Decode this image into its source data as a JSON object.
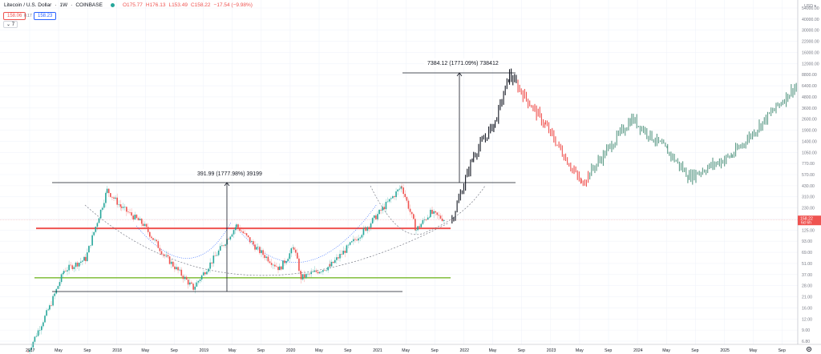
{
  "header": {
    "symbol": "Litecoin / U.S. Dollar",
    "interval": "1W",
    "exchange": "COINBASE",
    "open": "O175.77",
    "high": "H176.13",
    "low": "L153.49",
    "close": "C158.22",
    "change": "−17.54 (−9.98%)",
    "sell_price": "158.06",
    "spread": "0.17",
    "buy_price": "158.23",
    "indicators_toggle": "7"
  },
  "price_axis": {
    "currency": "USD",
    "labels": [
      "54000.00",
      "40000.00",
      "30000.00",
      "22000.00",
      "16000.00",
      "12000.00",
      "8800.00",
      "6400.00",
      "4800.00",
      "3600.00",
      "2600.00",
      "1900.00",
      "1400.00",
      "1050.00",
      "770.00",
      "570.00",
      "430.00",
      "310.00",
      "230.00",
      "170.00",
      "125.00",
      "93.00",
      "69.00",
      "51.00",
      "37.00",
      "28.00",
      "21.00",
      "16.00",
      "12.00",
      "9.00",
      "6.80"
    ],
    "current_price": "158.22",
    "countdown": "6d 6h"
  },
  "time_axis": {
    "labels": [
      "2017",
      "May",
      "Sep",
      "2018",
      "May",
      "Sep",
      "2019",
      "May",
      "Sep",
      "2020",
      "May",
      "Sep",
      "2021",
      "May",
      "Sep",
      "2022",
      "May",
      "Sep",
      "2023",
      "May",
      "Sep",
      "2024",
      "May",
      "Sep",
      "2025",
      "May",
      "Sep"
    ]
  },
  "measurements": [
    {
      "label": "391.99 (1777.98%) 39199"
    },
    {
      "label": "7384.12 (1771.09%) 738412"
    }
  ],
  "colors": {
    "up": "#26a69a",
    "down": "#ef5350",
    "projection": "#131722",
    "support": "#8bc34a",
    "resistance": "#ef5350",
    "arc_dashed": "#787b86",
    "arc_dotted": "#2962ff"
  },
  "chart_data": {
    "type": "bar",
    "title": "Litecoin / U.S. Dollar · 1W · COINBASE",
    "xlabel": "",
    "ylabel": "USD (log scale)",
    "scale": "log",
    "ylim": [
      6.8,
      54000
    ],
    "x_range": [
      "2017-01",
      "2025-12"
    ],
    "grid": true,
    "annotations": [
      {
        "type": "horizontal_line",
        "name": "resistance",
        "price": 125,
        "color": "#ef5350"
      },
      {
        "type": "horizontal_line",
        "name": "support",
        "price": 33,
        "color": "#8bc34a"
      },
      {
        "type": "price_range",
        "label": "391.99 (1777.98%) 39199",
        "from": 22,
        "to": 414
      },
      {
        "type": "price_range",
        "label": "7384.12 (1771.09%) 738412",
        "from": 414,
        "to": 7800
      },
      {
        "type": "arc",
        "style": "dashed",
        "description": "cup bottom 2018–2021"
      },
      {
        "type": "arc",
        "style": "dotted",
        "description": "inner cup arcs"
      }
    ],
    "series": [
      {
        "name": "LTCUSD historical",
        "points": [
          {
            "date": "2017-01",
            "price": 4.5
          },
          {
            "date": "2017-04",
            "price": 15
          },
          {
            "date": "2017-06",
            "price": 40
          },
          {
            "date": "2017-09",
            "price": 55
          },
          {
            "date": "2017-12",
            "price": 350
          },
          {
            "date": "2018-02",
            "price": 220
          },
          {
            "date": "2018-05",
            "price": 140
          },
          {
            "date": "2018-08",
            "price": 60
          },
          {
            "date": "2018-12",
            "price": 25
          },
          {
            "date": "2019-06",
            "price": 135
          },
          {
            "date": "2019-09",
            "price": 70
          },
          {
            "date": "2019-12",
            "price": 42
          },
          {
            "date": "2020-02",
            "price": 75
          },
          {
            "date": "2020-03",
            "price": 33
          },
          {
            "date": "2020-07",
            "price": 45
          },
          {
            "date": "2020-12",
            "price": 125
          },
          {
            "date": "2021-05",
            "price": 390
          },
          {
            "date": "2021-07",
            "price": 120
          },
          {
            "date": "2021-09",
            "price": 190
          },
          {
            "date": "2021-11",
            "price": 158
          }
        ]
      },
      {
        "name": "Projection (bars pattern)",
        "points": [
          {
            "date": "2021-12",
            "price": 160
          },
          {
            "date": "2022-03",
            "price": 900
          },
          {
            "date": "2022-06",
            "price": 2200
          },
          {
            "date": "2022-08",
            "price": 7800
          },
          {
            "date": "2023-01",
            "price": 2000
          },
          {
            "date": "2023-06",
            "price": 420
          },
          {
            "date": "2024-01",
            "price": 2400
          },
          {
            "date": "2024-06",
            "price": 1000
          },
          {
            "date": "2024-09",
            "price": 500
          },
          {
            "date": "2025-03",
            "price": 900
          },
          {
            "date": "2025-12",
            "price": 6000
          }
        ]
      }
    ]
  }
}
